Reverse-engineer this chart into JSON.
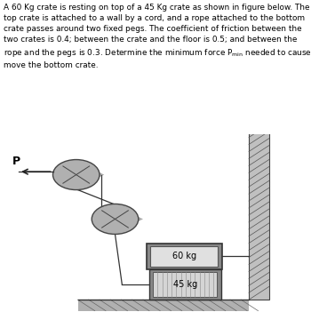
{
  "bg_color": "#ffffff",
  "text_color": "#000000",
  "label_60": "60 kg",
  "label_45": "45 kg",
  "label_P": "P",
  "peg_fill": "#b0b0b0",
  "peg_edge": "#444444",
  "shadow_color": "#aaaaaa",
  "crate_outer_fill": "#aaaaaa",
  "crate_inner_fill": "#e8e8e8",
  "wall_fill": "#b8b8b8",
  "floor_fill": "#a0a0a0",
  "rope_color": "#333333",
  "hatch_color": "#555555",
  "text_block": "A 60 Kg crate is resting on top of a 45 Kg crate as shown in figure below. The top crate is attached to a wall by a cord, and a rope attached to the bottom crate passes around two fixed pegs. The coefficient of friction between the two crates is 0.4; between the crate and the floor is 0.5; and between the rope and the pegs is 0.3. Determine the minimum force P",
  "text_end": " needed to cause move the bottom crate."
}
